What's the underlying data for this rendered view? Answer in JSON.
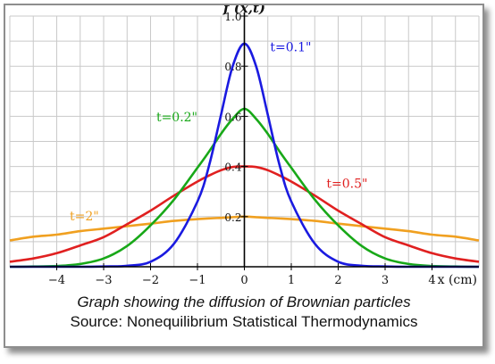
{
  "figure": {
    "caption_line1": "Graph showing the diffusion of Brownian particles",
    "caption_line2": "Source: Nonequilibrium Statistical Thermodynamics"
  },
  "chart_data": {
    "type": "line",
    "title": "",
    "ylabel": "f (x,t)",
    "xlabel": "x (cm)",
    "xlim": [
      -5,
      5
    ],
    "ylim": [
      0,
      1.0
    ],
    "x_ticks": [
      -4,
      -3,
      -2,
      -1,
      0,
      1,
      2,
      3,
      4
    ],
    "y_ticks": [
      0.2,
      0.4,
      0.6,
      0.8,
      1.0
    ],
    "x_tick_labels": [
      "−4",
      "−3",
      "−2",
      "−1",
      "0",
      "1",
      "2",
      "3",
      "4"
    ],
    "y_tick_labels": [
      "0.2",
      "0.4",
      "0.6",
      "0.8",
      "1.0"
    ],
    "grid": true,
    "x": [
      -5,
      -4.5,
      -4,
      -3.5,
      -3,
      -2.5,
      -2,
      -1.5,
      -1,
      -0.75,
      -0.5,
      -0.25,
      0,
      0.25,
      0.5,
      0.75,
      1,
      1.5,
      2,
      2.5,
      3,
      3.5,
      4,
      4.5,
      5
    ],
    "series": [
      {
        "name": "t=0.1\"",
        "color": "#1a1ae0",
        "values": [
          0,
          0,
          0,
          0,
          0.001,
          0.004,
          0.02,
          0.092,
          0.26,
          0.405,
          0.605,
          0.8,
          0.89,
          0.8,
          0.605,
          0.405,
          0.26,
          0.092,
          0.02,
          0.004,
          0.001,
          0,
          0,
          0,
          0
        ]
      },
      {
        "name": "t=0.2\"",
        "color": "#18a818",
        "values": [
          0,
          0.001,
          0.003,
          0.011,
          0.033,
          0.083,
          0.165,
          0.268,
          0.395,
          0.46,
          0.53,
          0.59,
          0.63,
          0.59,
          0.53,
          0.46,
          0.395,
          0.268,
          0.165,
          0.083,
          0.033,
          0.011,
          0.003,
          0.001,
          0
        ]
      },
      {
        "name": "t=0.5\"",
        "color": "#e02020",
        "values": [
          0.02,
          0.033,
          0.054,
          0.085,
          0.118,
          0.17,
          0.224,
          0.284,
          0.34,
          0.364,
          0.385,
          0.398,
          0.4,
          0.398,
          0.385,
          0.364,
          0.34,
          0.284,
          0.224,
          0.17,
          0.118,
          0.085,
          0.054,
          0.033,
          0.02
        ]
      },
      {
        "name": "t=2\"",
        "color": "#f0a020",
        "values": [
          0.105,
          0.12,
          0.128,
          0.142,
          0.152,
          0.162,
          0.172,
          0.183,
          0.19,
          0.193,
          0.195,
          0.198,
          0.2,
          0.198,
          0.195,
          0.193,
          0.19,
          0.183,
          0.172,
          0.162,
          0.152,
          0.142,
          0.128,
          0.12,
          0.105
        ]
      }
    ]
  }
}
